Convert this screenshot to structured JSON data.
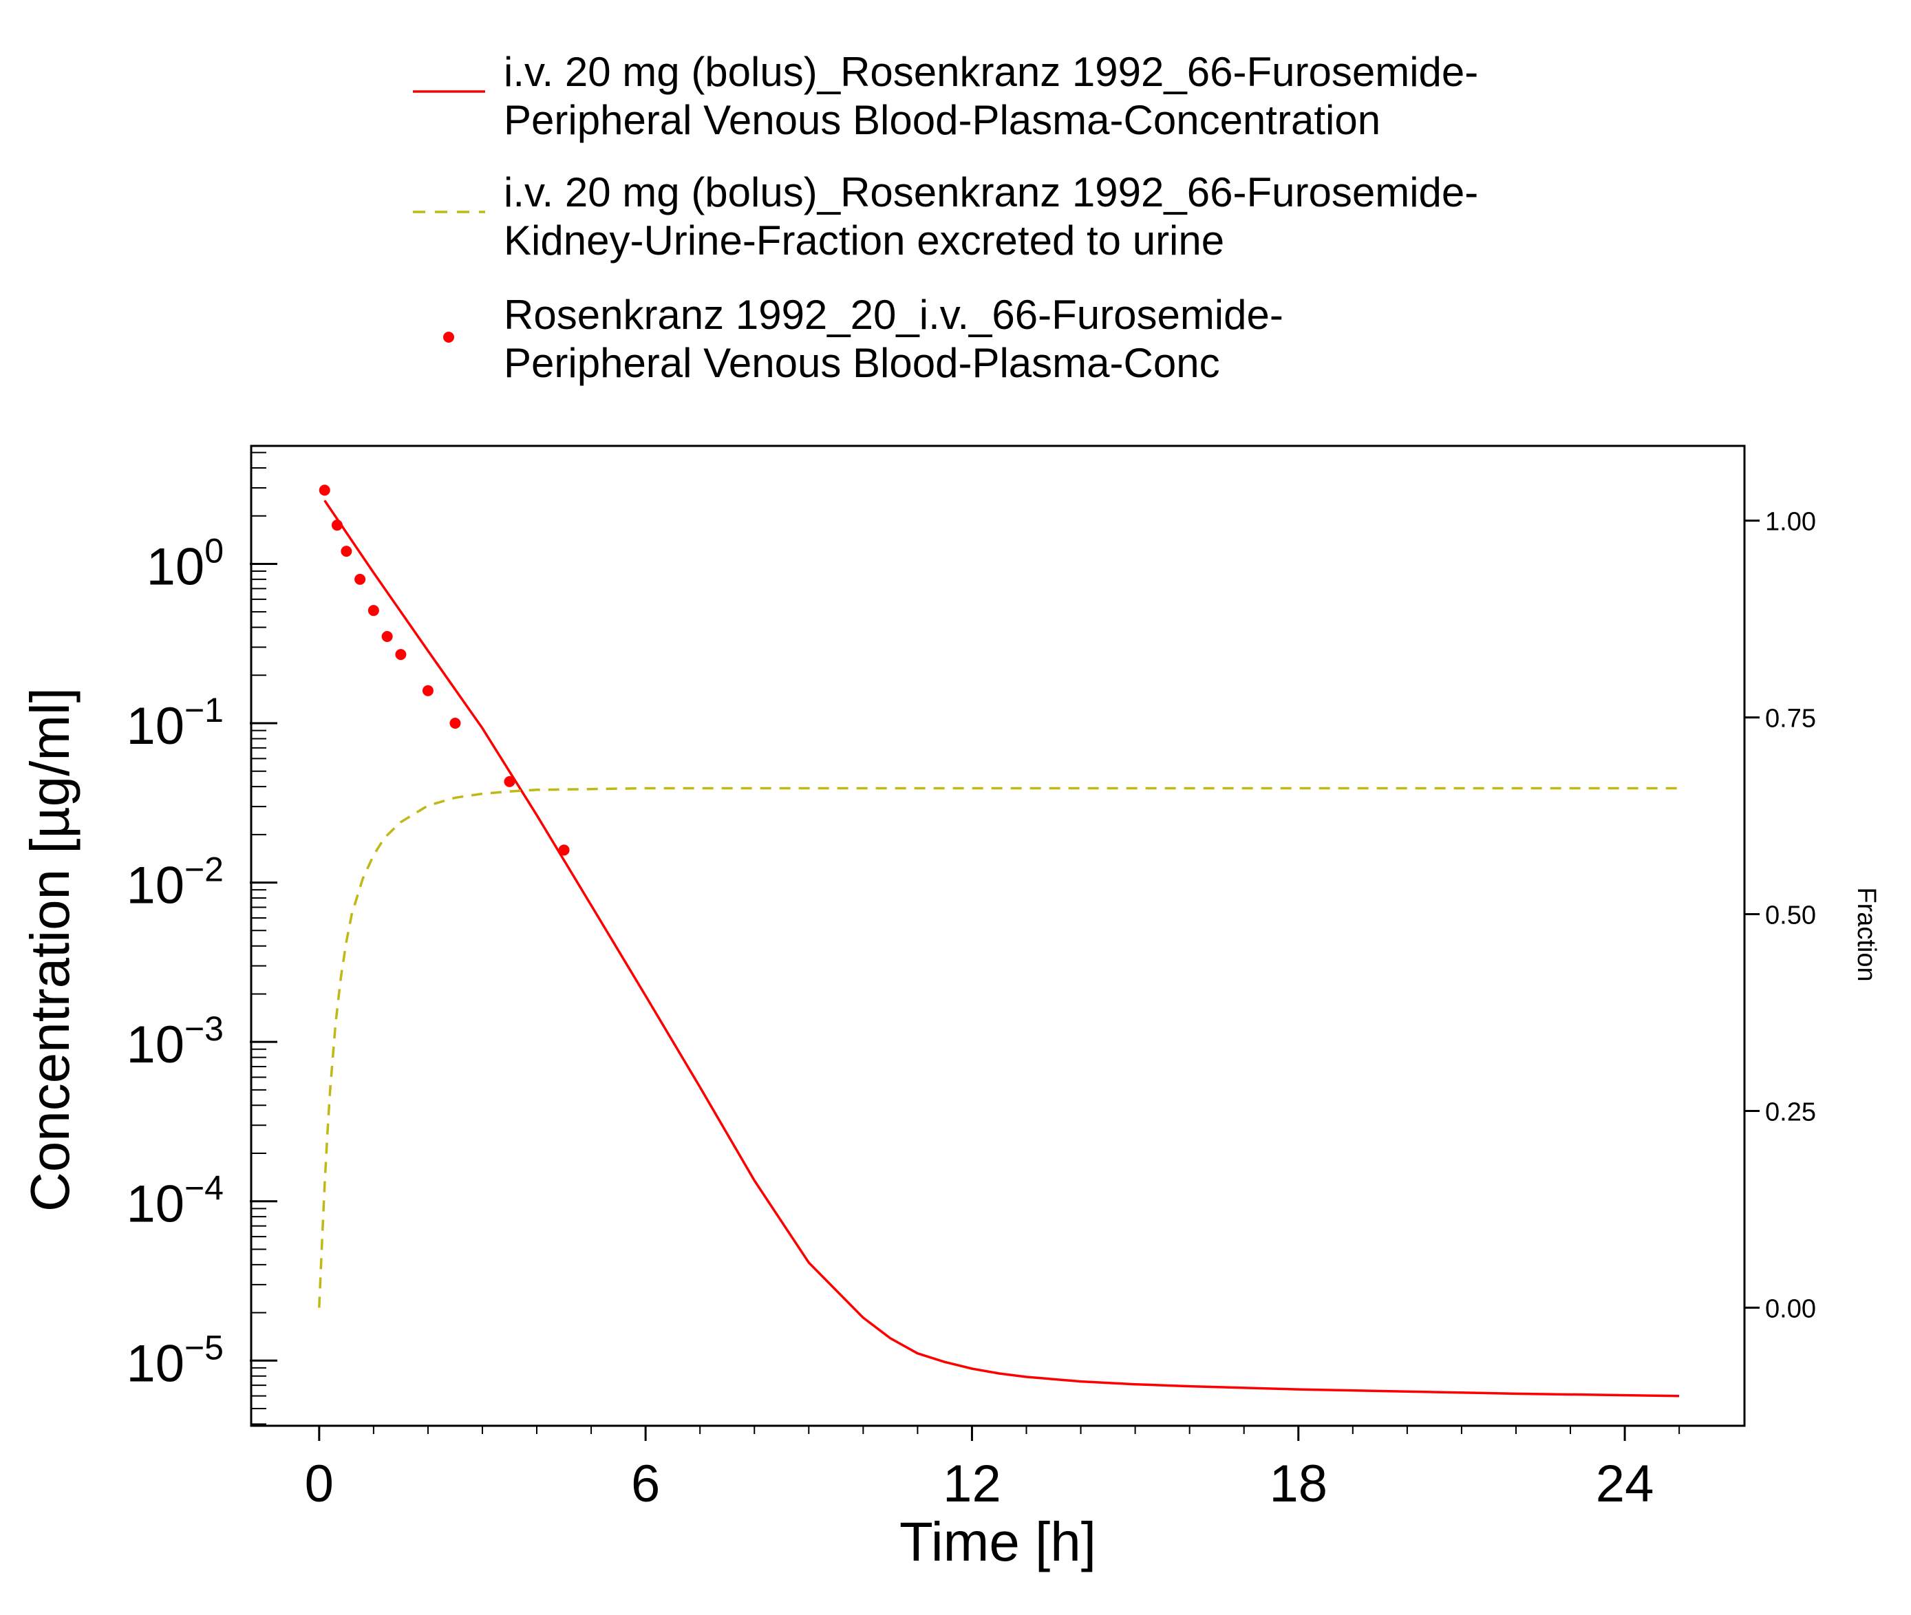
{
  "chart_data": {
    "type": "line",
    "xlabel": "Time [h]",
    "ylabel": "Concentration [µg/ml]",
    "y2label": "Fraction",
    "x_ticks": [
      0,
      6,
      12,
      18,
      24
    ],
    "x_tick_labels": [
      "0",
      "6",
      "12",
      "18",
      "24"
    ],
    "xlim": [
      -1.25,
      26.2
    ],
    "y_scale": "log",
    "ylim": [
      3.9e-06,
      5.5
    ],
    "y_ticks": [
      {
        "value": 1,
        "base": "10",
        "exp": "0"
      },
      {
        "value": 0.1,
        "base": "10",
        "exp": "−1"
      },
      {
        "value": 0.01,
        "base": "10",
        "exp": "−2"
      },
      {
        "value": 0.001,
        "base": "10",
        "exp": "−3"
      },
      {
        "value": 0.0001,
        "base": "10",
        "exp": "−4"
      },
      {
        "value": 1e-05,
        "base": "10",
        "exp": "−5"
      }
    ],
    "y2_scale": "linear",
    "y2lim": [
      -0.15,
      1.095
    ],
    "y2_ticks": [
      0.0,
      0.25,
      0.5,
      0.75,
      1.0
    ],
    "y2_tick_labels": [
      "0.00",
      "0.25",
      "0.50",
      "0.75",
      "1.00"
    ],
    "grid": false,
    "legend_position": "top",
    "series": [
      {
        "name": "i.v. 20 mg (bolus)_Rosenkranz 1992_66-Furosemide-Peripheral Venous Blood-Plasma-Concentration",
        "legend_lines": [
          "i.v. 20 mg (bolus)_Rosenkranz 1992_66-Furosemide-",
          "Peripheral Venous Blood-Plasma-Concentration"
        ],
        "style": "solid",
        "color": "#ff0000",
        "axis": "left",
        "x": [
          0.1,
          1,
          2,
          3,
          4,
          5,
          6,
          7,
          8,
          9,
          10,
          10.5,
          11,
          11.5,
          12,
          12.5,
          13,
          14,
          15,
          16,
          18,
          20,
          22,
          25
        ],
        "y": [
          2.5,
          0.88,
          0.285,
          0.093,
          0.0265,
          0.0072,
          0.00195,
          0.00052,
          0.000135,
          4.12e-05,
          1.86e-05,
          1.38e-05,
          1.11e-05,
          9.8e-06,
          8.9e-06,
          8.3e-06,
          7.9e-06,
          7.4e-06,
          7.1e-06,
          6.9e-06,
          6.6e-06,
          6.4e-06,
          6.2e-06,
          6e-06
        ]
      },
      {
        "name": "i.v. 20 mg (bolus)_Rosenkranz 1992_66-Furosemide-Kidney-Urine-Fraction excreted to urine",
        "legend_lines": [
          "i.v. 20 mg (bolus)_Rosenkranz 1992_66-Furosemide-",
          "Kidney-Urine-Fraction excreted to urine"
        ],
        "style": "dashed",
        "color": "#c0b814",
        "axis": "right",
        "x": [
          0,
          0.05,
          0.1,
          0.15,
          0.2,
          0.3,
          0.4,
          0.5,
          0.6,
          0.8,
          1.0,
          1.2,
          1.5,
          2.0,
          2.5,
          3.0,
          3.5,
          4.0,
          5.0,
          6.0,
          8.0,
          12,
          18,
          25
        ],
        "y": [
          0.0,
          0.08,
          0.155,
          0.22,
          0.275,
          0.36,
          0.42,
          0.465,
          0.5,
          0.545,
          0.575,
          0.597,
          0.617,
          0.638,
          0.648,
          0.653,
          0.656,
          0.658,
          0.659,
          0.66,
          0.66,
          0.66,
          0.66,
          0.66
        ]
      },
      {
        "name": "Rosenkranz 1992_20_i.v._66-Furosemide-Peripheral Venous Blood-Plasma-Conc",
        "legend_lines": [
          "Rosenkranz 1992_20_i.v._66-Furosemide-",
          "Peripheral Venous Blood-Plasma-Conc"
        ],
        "style": "markers",
        "color": "#ff0000",
        "axis": "left",
        "x": [
          0.1,
          0.33,
          0.5,
          0.75,
          1.0,
          1.25,
          1.5,
          2.0,
          2.5,
          3.5,
          4.5
        ],
        "y": [
          2.9,
          1.75,
          1.2,
          0.8,
          0.51,
          0.35,
          0.27,
          0.16,
          0.1,
          0.043,
          0.016
        ]
      }
    ]
  }
}
